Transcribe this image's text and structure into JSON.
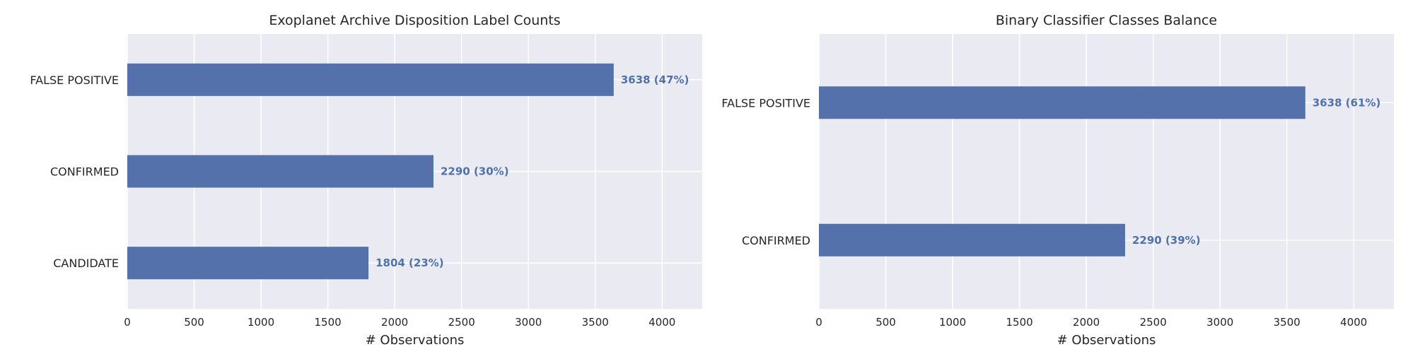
{
  "chart_data": [
    {
      "type": "bar",
      "orientation": "horizontal",
      "title": "Exoplanet Archive Disposition Label Counts",
      "xlabel": "# Observations",
      "ylabel": "",
      "categories": [
        "FALSE POSITIVE",
        "CONFIRMED",
        "CANDIDATE"
      ],
      "values": [
        3638,
        2290,
        1804
      ],
      "data_labels": [
        "3638 (47%)",
        "2290 (30%)",
        "1804 (23%)"
      ],
      "xlim": [
        0,
        4300
      ],
      "xticks": [
        0,
        500,
        1000,
        1500,
        2000,
        2500,
        3000,
        3500,
        4000
      ],
      "grid": true,
      "bar_color": "#5471ab"
    },
    {
      "type": "bar",
      "orientation": "horizontal",
      "title": "Binary Classifier Classes Balance",
      "xlabel": "# Observations",
      "ylabel": "",
      "categories": [
        "FALSE POSITIVE",
        "CONFIRMED"
      ],
      "values": [
        3638,
        2290
      ],
      "data_labels": [
        "3638 (61%)",
        "2290 (39%)"
      ],
      "xlim": [
        0,
        4300
      ],
      "xticks": [
        0,
        500,
        1000,
        1500,
        2000,
        2500,
        3000,
        3500,
        4000
      ],
      "grid": true,
      "bar_color": "#5471ab"
    }
  ]
}
